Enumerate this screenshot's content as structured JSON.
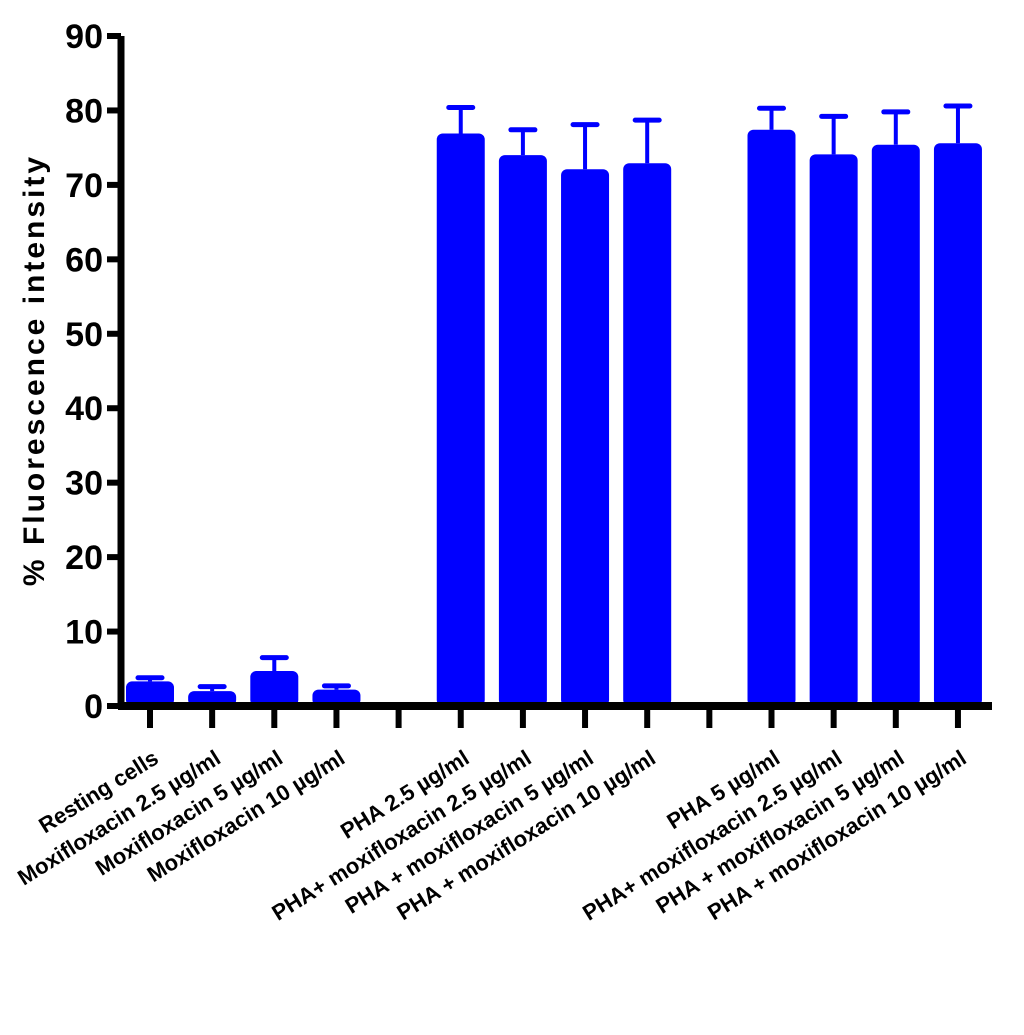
{
  "chart_data": {
    "type": "bar",
    "title": "",
    "xlabel": "",
    "ylabel": "% Fluorescence intensity",
    "ylim": [
      0,
      90
    ],
    "yticks": [
      0,
      10,
      20,
      30,
      40,
      50,
      60,
      70,
      80,
      90
    ],
    "grid": false,
    "bar_color": "#0000ff",
    "slots": [
      {
        "label": "Resting cells",
        "value": 3.3,
        "error": 0.5
      },
      {
        "label": "Moxifloxacin 2.5 µg/ml",
        "value": 2.0,
        "error": 0.6
      },
      {
        "label": "Moxifloxacin 5 µg/ml",
        "value": 4.7,
        "error": 1.8
      },
      {
        "label": "Moxifloxacin 10 µg/ml",
        "value": 2.2,
        "error": 0.5
      },
      {
        "label": "",
        "value": null,
        "error": null
      },
      {
        "label": "PHA 2.5 µg/ml",
        "value": 76.9,
        "error": 3.5
      },
      {
        "label": "PHA+ moxifloxacin 2.5 µg/ml",
        "value": 74.0,
        "error": 3.4
      },
      {
        "label": "PHA + moxifloxacin 5 µg/ml",
        "value": 72.1,
        "error": 6.0
      },
      {
        "label": "PHA + moxifloxacin 10 µg/ml",
        "value": 72.9,
        "error": 5.8
      },
      {
        "label": "",
        "value": null,
        "error": null
      },
      {
        "label": "PHA 5 µg/ml",
        "value": 77.4,
        "error": 2.9
      },
      {
        "label": "PHA+ moxifloxacin 2.5 µg/ml",
        "value": 74.1,
        "error": 5.1
      },
      {
        "label": "PHA + moxifloxacin 5 µg/ml",
        "value": 75.4,
        "error": 4.4
      },
      {
        "label": "PHA + moxifloxacin 10 µg/ml",
        "value": 75.6,
        "error": 5.0
      }
    ]
  }
}
